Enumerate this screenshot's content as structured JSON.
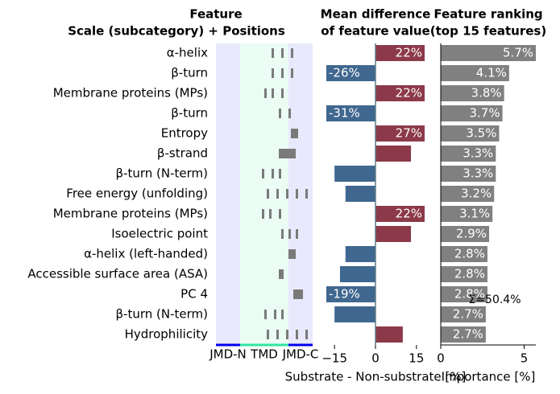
{
  "chart_data": [
    {
      "type": "feature_map",
      "title": [
        "Feature",
        "Scale (subcategory)  +  Positions"
      ],
      "categories": [
        "α-helix",
        "β-turn",
        "Membrane proteins (MPs)",
        "β-turn",
        "Entropy",
        "β-strand",
        "β-turn (N-term)",
        "Free energy (unfolding)",
        "Membrane proteins (MPs)",
        "Isoelectric point",
        "α-helix (left-handed)",
        "Accessible surface area (ASA)",
        "PC 4",
        "β-turn (N-term)",
        "Hydrophilicity"
      ],
      "positions": [
        [
          24,
          28,
          32
        ],
        [
          24,
          28,
          32
        ],
        [
          21,
          24,
          28
        ],
        [
          27,
          31
        ],
        [
          32,
          33,
          34
        ],
        [
          27,
          28,
          29,
          30,
          31,
          32,
          33
        ],
        [
          20,
          24,
          27
        ],
        [
          22,
          26,
          30,
          34,
          38
        ],
        [
          20,
          23,
          27
        ],
        [
          28,
          31,
          34
        ],
        [
          31,
          32,
          33
        ],
        [
          27,
          28
        ],
        [
          33,
          34,
          35,
          36
        ],
        [
          21,
          25,
          28
        ],
        [
          22,
          26,
          30,
          34,
          38
        ]
      ],
      "xlim": [
        0,
        40
      ],
      "mark_color": "#7a7a7a",
      "regions": [
        {
          "label": "JMD-N",
          "range": [
            0,
            10
          ],
          "color": "#e9e9fd",
          "line_color": "#0000ee"
        },
        {
          "label": "TMD",
          "range": [
            10,
            30
          ],
          "color": "#eafcf4",
          "line_color": "#2ee6a0"
        },
        {
          "label": "JMD-C",
          "range": [
            30,
            40
          ],
          "color": "#e9e9fd",
          "line_color": "#0000ee"
        }
      ]
    },
    {
      "type": "barh",
      "title": [
        "Mean difference",
        "of feature value"
      ],
      "xlabel": "Substrate - Non-substrate [%]",
      "values": [
        22,
        -26,
        22,
        -31,
        27,
        13,
        -15,
        -11,
        22,
        13,
        -11,
        -13,
        -19,
        -15,
        10
      ],
      "value_labels": [
        "22%",
        "-26%",
        "22%",
        "-31%",
        "27%",
        null,
        null,
        null,
        "22%",
        null,
        null,
        null,
        "-19%",
        null,
        null
      ],
      "xlim": [
        -18,
        18
      ],
      "xticks": [
        {
          "value": -15,
          "label": "−15"
        },
        0,
        15
      ],
      "color_positive": "#8c3a49",
      "color_negative": "#40678f"
    },
    {
      "type": "barh",
      "title": [
        "Feature ranking",
        "(top 15 features)"
      ],
      "xlabel": "Importance [%]",
      "values": [
        5.7,
        4.1,
        3.8,
        3.7,
        3.5,
        3.3,
        3.3,
        3.2,
        3.1,
        2.9,
        2.8,
        2.8,
        2.8,
        2.7,
        2.7
      ],
      "value_labels": [
        "5.7%",
        "4.1%",
        "3.8%",
        "3.7%",
        "3.5%",
        "3.3%",
        "3.3%",
        "3.2%",
        "3.1%",
        "2.9%",
        "2.8%",
        "2.8%",
        "2.8%",
        "2.7%",
        "2.7%"
      ],
      "xlim": [
        0,
        5.7
      ],
      "xticks": [
        0,
        5
      ],
      "color": "#808080",
      "annotation": "Σ=50.4%"
    }
  ]
}
